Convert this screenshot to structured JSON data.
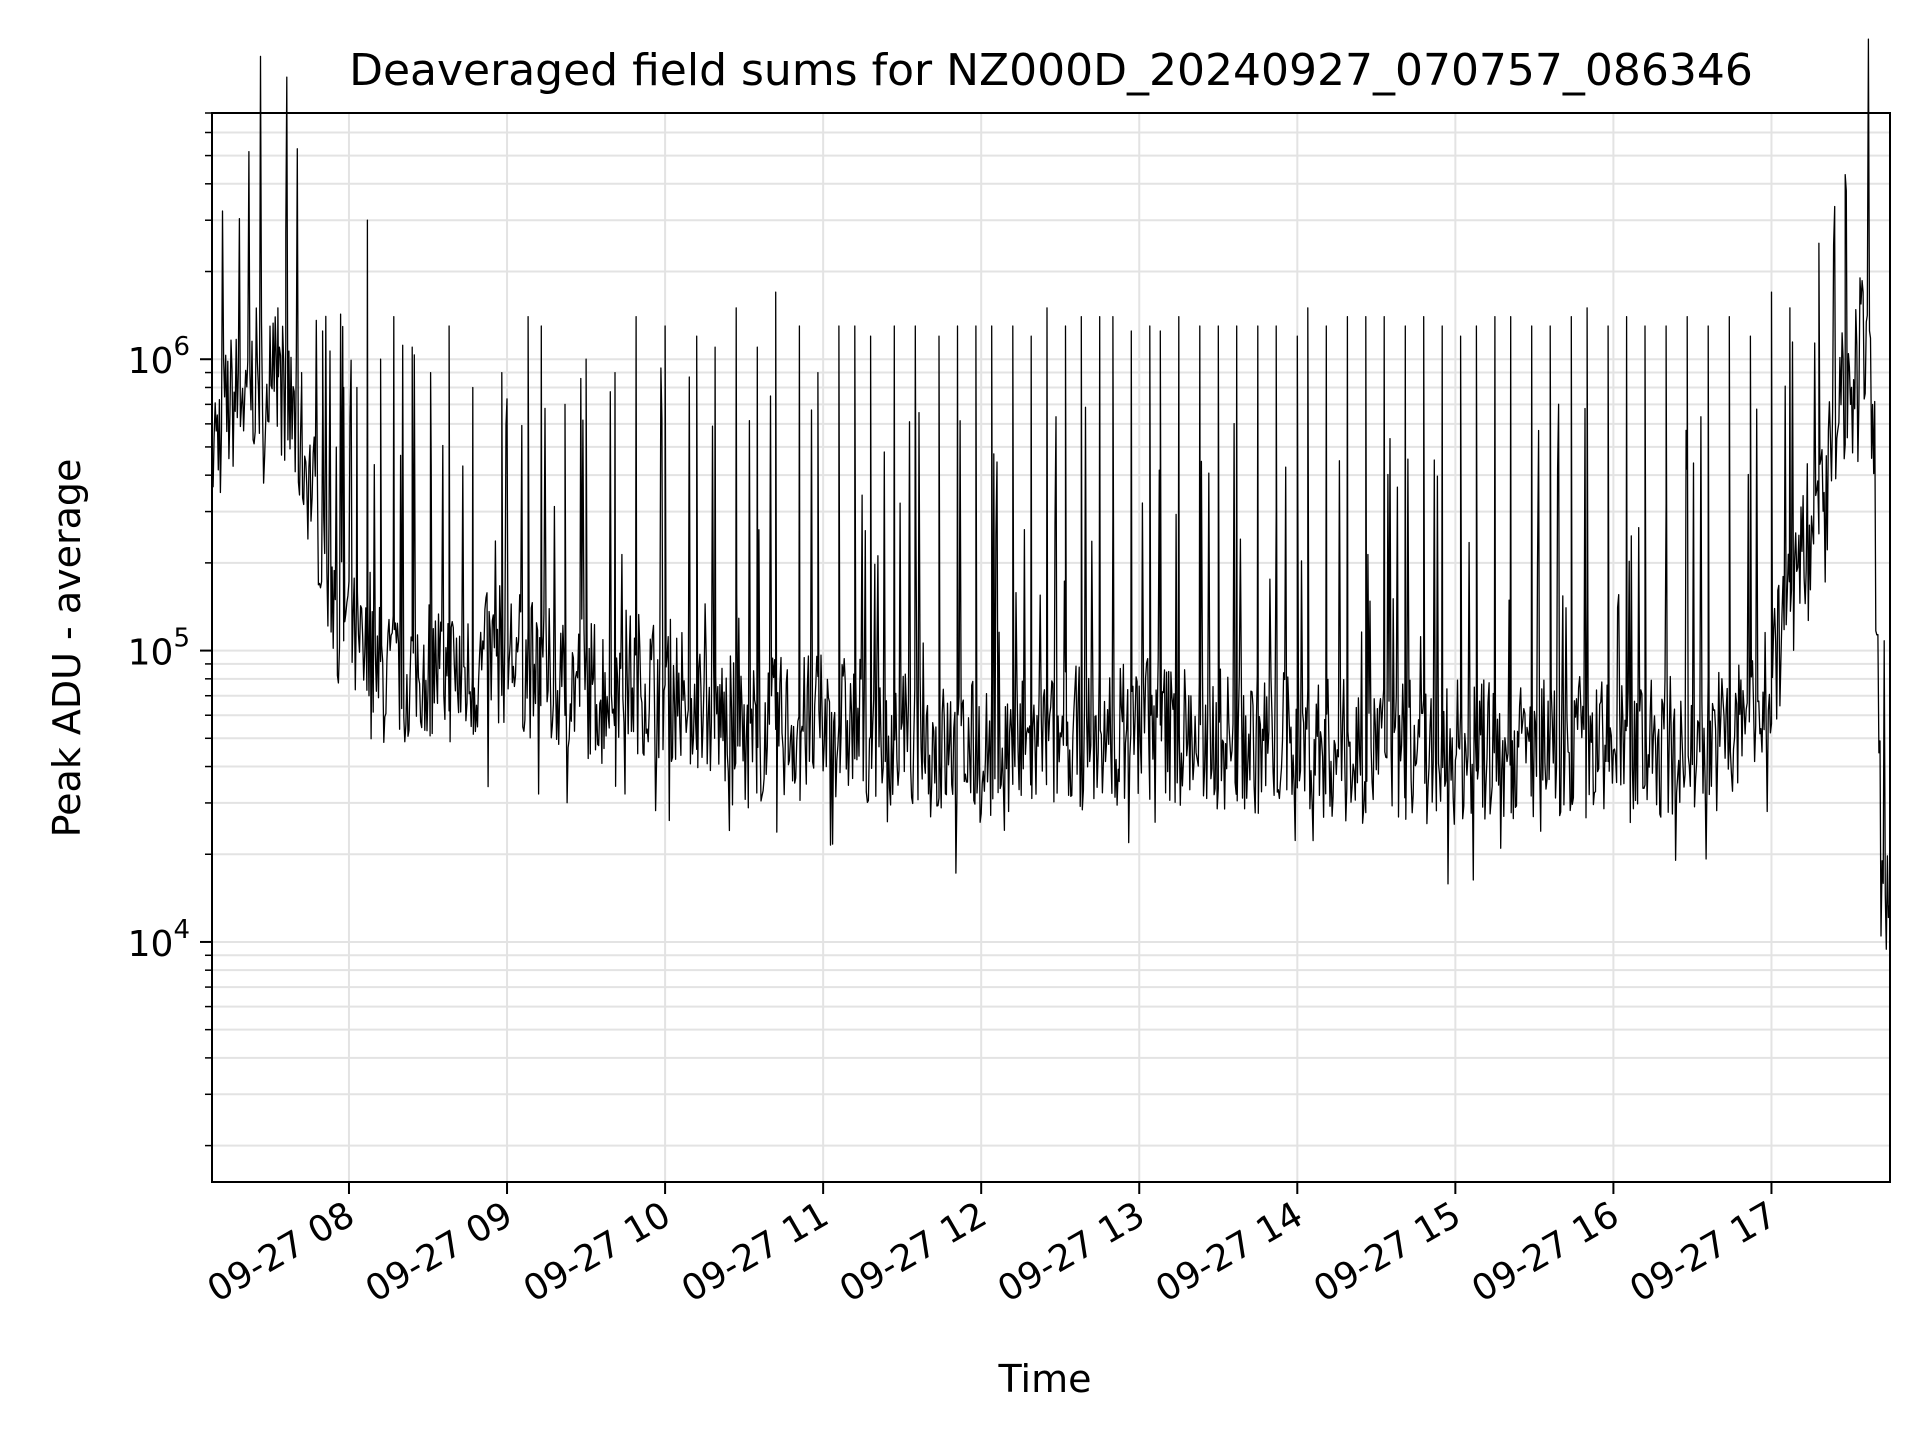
{
  "chart_data": {
    "type": "line",
    "title": "Deaveraged field sums for NZ000D_20240927_070757_086346",
    "xlabel": "Time",
    "ylabel": "Peak ADU - average",
    "yscale": "log",
    "xlim": [
      "09-27 07:08",
      "09-27 17:45"
    ],
    "ylim": [
      1500,
      7000000
    ],
    "grid": true,
    "x_ticks": [
      "09-27 08",
      "09-27 09",
      "09-27 10",
      "09-27 11",
      "09-27 12",
      "09-27 13",
      "09-27 14",
      "09-27 15",
      "09-27 16",
      "09-27 17"
    ],
    "y_ticks": [
      {
        "base": "10",
        "exp": "4",
        "value": 10000
      },
      {
        "base": "10",
        "exp": "5",
        "value": 100000
      },
      {
        "base": "10",
        "exp": "6",
        "value": 1000000
      }
    ],
    "series": [
      {
        "color": "#000000",
        "x": [
          "09-27 07:08",
          "09-27 07:15",
          "09-27 07:25",
          "09-27 07:35",
          "09-27 07:45",
          "09-27 07:55",
          "09-27 08:05",
          "09-27 08:15",
          "09-27 08:30",
          "09-27 08:45",
          "09-27 09:00",
          "09-27 09:15",
          "09-27 09:30",
          "09-27 09:45",
          "09-27 10:00",
          "09-27 10:15",
          "09-27 10:30",
          "09-27 10:45",
          "09-27 11:00",
          "09-27 11:15",
          "09-27 11:30",
          "09-27 11:45",
          "09-27 12:00",
          "09-27 12:15",
          "09-27 12:30",
          "09-27 12:45",
          "09-27 13:00",
          "09-27 13:15",
          "09-27 13:30",
          "09-27 13:45",
          "09-27 14:00",
          "09-27 14:15",
          "09-27 14:30",
          "09-27 14:45",
          "09-27 15:00",
          "09-27 15:15",
          "09-27 15:30",
          "09-27 15:45",
          "09-27 16:00",
          "09-27 16:15",
          "09-27 16:30",
          "09-27 16:45",
          "09-27 17:00",
          "09-27 17:10",
          "09-27 17:20",
          "09-27 17:30",
          "09-27 17:35",
          "09-27 17:38",
          "09-27 17:40",
          "09-27 17:42",
          "09-27 17:45"
        ],
        "y": [
          500000,
          700000,
          850000,
          800000,
          400000,
          150000,
          90000,
          80000,
          90000,
          80000,
          100000,
          80000,
          75000,
          80000,
          75000,
          65000,
          50000,
          55000,
          55000,
          55000,
          50000,
          45000,
          45000,
          45000,
          50000,
          50000,
          55000,
          52000,
          50000,
          48000,
          50000,
          45000,
          45000,
          45000,
          45000,
          45000,
          45000,
          48000,
          45000,
          45000,
          50000,
          50000,
          80000,
          200000,
          400000,
          1000000,
          1200000,
          800000,
          100000,
          12000,
          11000
        ],
        "spikes": [
          {
            "t": "09-27 07:33",
            "v": 1500000
          },
          {
            "t": "09-27 07:36",
            "v": 2700000
          },
          {
            "t": "09-27 07:42",
            "v": 900000
          },
          {
            "t": "09-27 07:50",
            "v": 1250000
          },
          {
            "t": "09-27 07:58",
            "v": 800000
          },
          {
            "t": "09-27 08:03",
            "v": 800000
          },
          {
            "t": "09-27 08:07",
            "v": 3000000
          },
          {
            "t": "09-27 08:12",
            "v": 1000000
          },
          {
            "t": "09-27 08:17",
            "v": 1400000
          },
          {
            "t": "09-27 08:24",
            "v": 1100000
          },
          {
            "t": "09-27 08:31",
            "v": 900000
          },
          {
            "t": "09-27 08:38",
            "v": 1300000
          },
          {
            "t": "09-27 08:47",
            "v": 800000
          },
          {
            "t": "09-27 08:58",
            "v": 900000
          },
          {
            "t": "09-27 09:08",
            "v": 1400000
          },
          {
            "t": "09-27 09:13",
            "v": 1300000
          },
          {
            "t": "09-27 09:22",
            "v": 700000
          },
          {
            "t": "09-27 09:30",
            "v": 1000000
          },
          {
            "t": "09-27 09:41",
            "v": 900000
          },
          {
            "t": "09-27 09:49",
            "v": 1400000
          },
          {
            "t": "09-27 10:00",
            "v": 1300000
          },
          {
            "t": "09-27 10:12",
            "v": 1200000
          },
          {
            "t": "09-27 10:19",
            "v": 1100000
          },
          {
            "t": "09-27 10:27",
            "v": 1500000
          },
          {
            "t": "09-27 10:35",
            "v": 1100000
          },
          {
            "t": "09-27 10:42",
            "v": 1700000
          },
          {
            "t": "09-27 10:51",
            "v": 1300000
          },
          {
            "t": "09-27 10:58",
            "v": 900000
          },
          {
            "t": "09-27 11:06",
            "v": 1300000
          },
          {
            "t": "09-27 11:12",
            "v": 1300000
          },
          {
            "t": "09-27 11:18",
            "v": 1200000
          },
          {
            "t": "09-27 11:27",
            "v": 1300000
          },
          {
            "t": "09-27 11:35",
            "v": 1300000
          },
          {
            "t": "09-27 11:44",
            "v": 1200000
          },
          {
            "t": "09-27 11:51",
            "v": 1300000
          },
          {
            "t": "09-27 11:58",
            "v": 1300000
          },
          {
            "t": "09-27 12:04",
            "v": 1300000
          },
          {
            "t": "09-27 12:12",
            "v": 1300000
          },
          {
            "t": "09-27 12:19",
            "v": 1200000
          },
          {
            "t": "09-27 12:25",
            "v": 1500000
          },
          {
            "t": "09-27 12:32",
            "v": 1300000
          },
          {
            "t": "09-27 12:38",
            "v": 1400000
          },
          {
            "t": "09-27 12:45",
            "v": 1400000
          },
          {
            "t": "09-27 12:50",
            "v": 1400000
          },
          {
            "t": "09-27 12:57",
            "v": 1250000
          },
          {
            "t": "09-27 13:04",
            "v": 1300000
          },
          {
            "t": "09-27 13:08",
            "v": 1250000
          },
          {
            "t": "09-27 13:15",
            "v": 1400000
          },
          {
            "t": "09-27 13:23",
            "v": 1300000
          },
          {
            "t": "09-27 13:30",
            "v": 1300000
          },
          {
            "t": "09-27 13:37",
            "v": 1300000
          },
          {
            "t": "09-27 13:45",
            "v": 1300000
          },
          {
            "t": "09-27 13:52",
            "v": 1300000
          },
          {
            "t": "09-27 14:00",
            "v": 1200000
          },
          {
            "t": "09-27 14:04",
            "v": 1500000
          },
          {
            "t": "09-27 14:11",
            "v": 1300000
          },
          {
            "t": "09-27 14:19",
            "v": 1400000
          },
          {
            "t": "09-27 14:26",
            "v": 1400000
          },
          {
            "t": "09-27 14:33",
            "v": 1400000
          },
          {
            "t": "09-27 14:41",
            "v": 1300000
          },
          {
            "t": "09-27 14:48",
            "v": 1400000
          },
          {
            "t": "09-27 14:55",
            "v": 1300000
          },
          {
            "t": "09-27 15:02",
            "v": 1200000
          },
          {
            "t": "09-27 15:08",
            "v": 1300000
          },
          {
            "t": "09-27 15:15",
            "v": 1400000
          },
          {
            "t": "09-27 15:21",
            "v": 1400000
          },
          {
            "t": "09-27 15:29",
            "v": 1300000
          },
          {
            "t": "09-27 15:36",
            "v": 1300000
          },
          {
            "t": "09-27 15:44",
            "v": 1400000
          },
          {
            "t": "09-27 15:50",
            "v": 1500000
          },
          {
            "t": "09-27 15:58",
            "v": 1300000
          },
          {
            "t": "09-27 16:05",
            "v": 1400000
          },
          {
            "t": "09-27 16:12",
            "v": 1300000
          },
          {
            "t": "09-27 16:20",
            "v": 1300000
          },
          {
            "t": "09-27 16:28",
            "v": 1400000
          },
          {
            "t": "09-27 16:36",
            "v": 1300000
          },
          {
            "t": "09-27 16:44",
            "v": 1400000
          },
          {
            "t": "09-27 16:52",
            "v": 1200000
          },
          {
            "t": "09-27 17:00",
            "v": 1700000
          },
          {
            "t": "09-27 17:07",
            "v": 1500000
          },
          {
            "t": "09-27 17:18",
            "v": 2500000
          },
          {
            "t": "09-27 17:24",
            "v": 2700000
          },
          {
            "t": "09-27 17:28",
            "v": 4300000
          }
        ]
      }
    ]
  }
}
